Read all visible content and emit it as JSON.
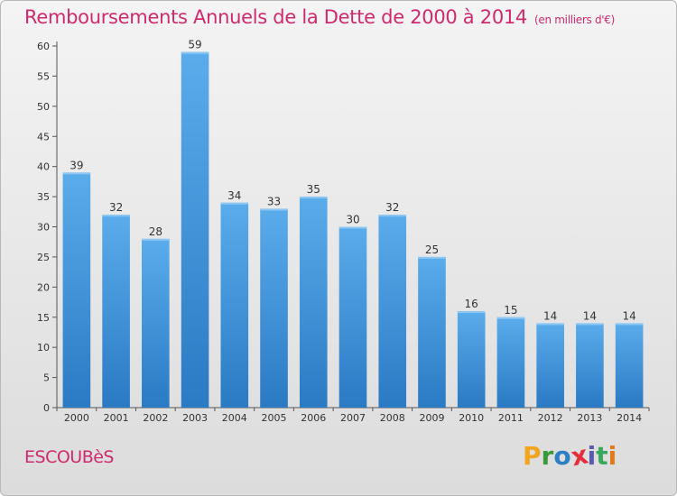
{
  "page": {
    "commune": "ESCOUBèS",
    "brand": [
      "P",
      "r",
      "o",
      "x",
      "i",
      "t",
      "i"
    ],
    "brand_colors": [
      "#f2a51f",
      "#3a9a3a",
      "#2c7fc4",
      "#e52d3b",
      "#5a5ab0",
      "#38a85c",
      "#e07a1c"
    ]
  },
  "chart_data": {
    "type": "bar",
    "title": "Remboursements Annuels de la Dette de 2000 à 2014",
    "subtitle": "(en milliers d'€)",
    "xlabel": "",
    "ylabel": "",
    "categories": [
      "2000",
      "2001",
      "2002",
      "2003",
      "2004",
      "2005",
      "2006",
      "2007",
      "2008",
      "2009",
      "2010",
      "2011",
      "2012",
      "2013",
      "2014"
    ],
    "values": [
      39,
      32,
      28,
      59,
      34,
      33,
      35,
      30,
      32,
      25,
      16,
      15,
      14,
      14,
      14
    ],
    "ylim": [
      0,
      60
    ],
    "yticks": [
      0,
      5,
      10,
      15,
      20,
      25,
      30,
      35,
      40,
      45,
      50,
      55,
      60
    ],
    "grid": false,
    "bar_color": "#3f93d8"
  }
}
